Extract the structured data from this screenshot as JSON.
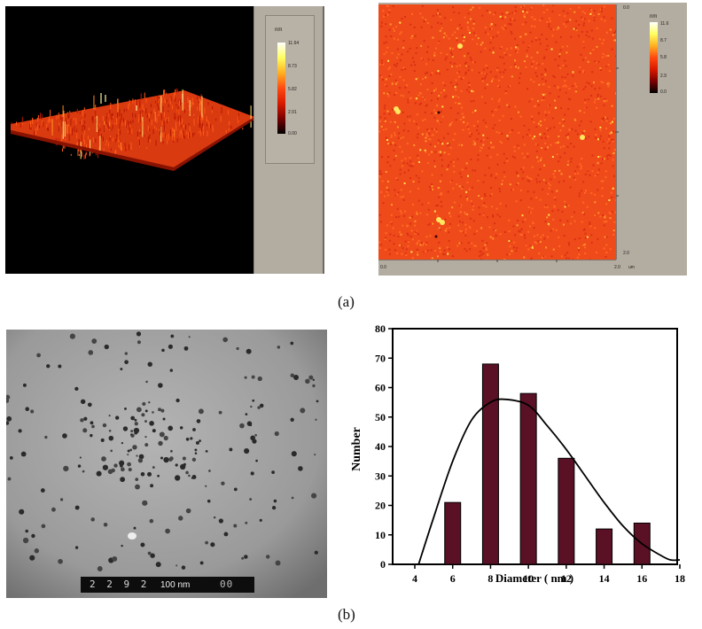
{
  "afm_3d": {
    "colorbar": {
      "unit": "nm",
      "ticks": [
        "11.64",
        "8.73",
        "5.82",
        "2.91",
        "0.00"
      ]
    }
  },
  "afm_2d": {
    "colorbar": {
      "unit": "nm",
      "ticks": [
        "11.6",
        "8.7",
        "5.8",
        "2.9",
        "0.0"
      ]
    },
    "y_axis": {
      "top": "0.0",
      "bottom": "2.0"
    },
    "x_axis": {
      "left": "0.0",
      "right": "2.0",
      "unit": "um"
    }
  },
  "colors": {
    "afm_palette": [
      "#000000",
      "#7a0000",
      "#d81a00",
      "#ff4a10",
      "#ffb020",
      "#ffff60",
      "#ffffff"
    ],
    "frame_gray": "#b3aca0",
    "bar_fill": "#5a1025"
  },
  "labels": {
    "panel_a": "(a)",
    "panel_b": "(b)"
  },
  "tem": {
    "micrograph_code": "2 2 9 2",
    "scale_label": "100 nm",
    "code_suffix": "00"
  },
  "chart_data": {
    "type": "bar",
    "title": "",
    "xlabel": "Diameter ( nm )",
    "ylabel": "Number",
    "x_ticks": [
      "4",
      "6",
      "8",
      "10",
      "12",
      "14",
      "16",
      "18"
    ],
    "y_ticks": [
      "0",
      "10",
      "20",
      "30",
      "40",
      "50",
      "60",
      "70",
      "80"
    ],
    "xlim": [
      4,
      18
    ],
    "ylim": [
      0,
      80
    ],
    "grid": false,
    "legend": "none",
    "categories": [
      6,
      8,
      10,
      12,
      14,
      16
    ],
    "values": [
      21,
      68,
      58,
      36,
      12,
      14
    ],
    "fit_curve": {
      "type": "line",
      "x": [
        4.2,
        5,
        6,
        7,
        8,
        8.8,
        10,
        11,
        12,
        13,
        14,
        15,
        16,
        17,
        17.5,
        18
      ],
      "y": [
        0,
        16,
        35,
        49,
        55,
        56,
        54,
        47,
        39,
        30,
        21,
        13,
        7,
        3,
        1.5,
        1.5
      ]
    }
  }
}
